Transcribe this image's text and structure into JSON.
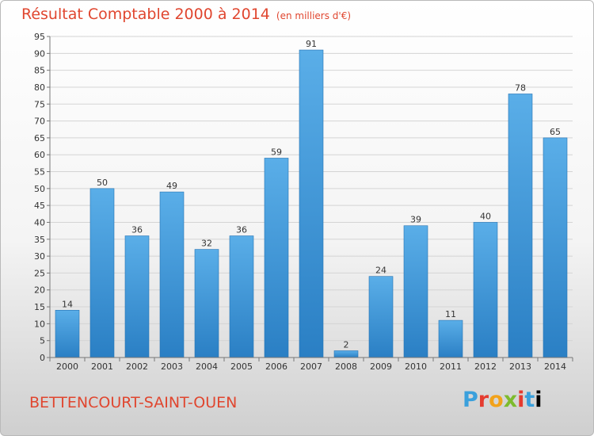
{
  "header": {
    "title": "Résultat Comptable 2000 à 2014",
    "subtitle": "(en milliers d'€)"
  },
  "footer": {
    "commune": "BETTENCOURT-SAINT-OUEN",
    "logo": "Proxiti",
    "logo_letters": [
      "P",
      "r",
      "o",
      "x",
      "i",
      "t",
      "i"
    ]
  },
  "colors": {
    "title": "#e0462f",
    "bar_top": "#5aaee8",
    "bar_bottom": "#2a7fc4"
  },
  "chart_data": {
    "type": "bar",
    "title": "Résultat Comptable 2000 à 2014",
    "subtitle": "(en milliers d'€)",
    "xlabel": "",
    "ylabel": "",
    "categories": [
      "2000",
      "2001",
      "2002",
      "2003",
      "2004",
      "2005",
      "2006",
      "2007",
      "2008",
      "2009",
      "2010",
      "2011",
      "2012",
      "2013",
      "2014"
    ],
    "values": [
      14,
      50,
      36,
      49,
      32,
      36,
      59,
      91,
      2,
      24,
      39,
      11,
      40,
      78,
      65
    ],
    "ylim": [
      0,
      95
    ],
    "yticks": [
      0,
      5,
      10,
      15,
      20,
      25,
      30,
      35,
      40,
      45,
      50,
      55,
      60,
      65,
      70,
      75,
      80,
      85,
      90,
      95
    ],
    "grid": true,
    "legend": "none"
  }
}
